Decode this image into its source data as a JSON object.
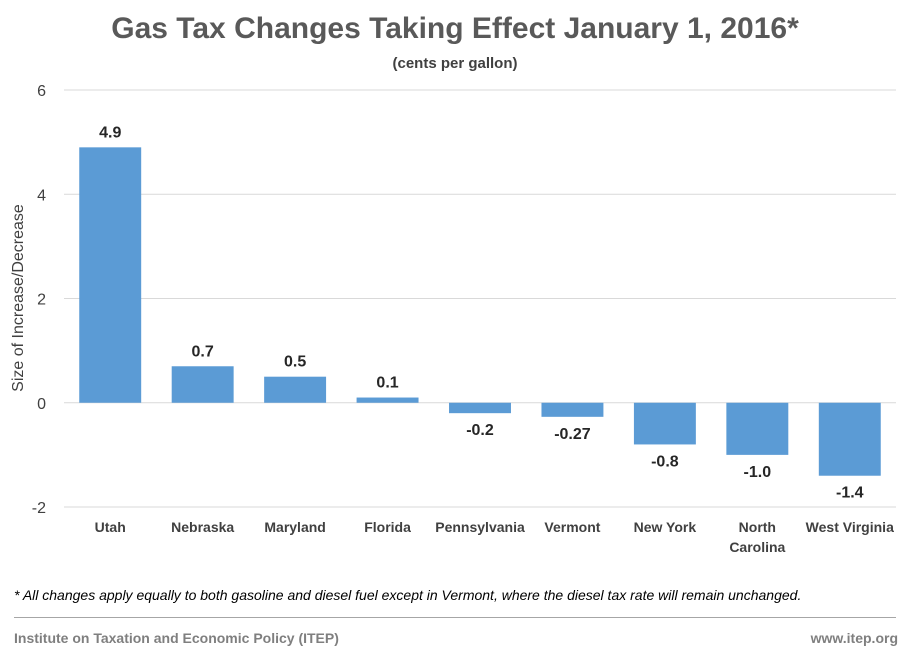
{
  "chart_data": {
    "type": "bar",
    "title": "Gas Tax Changes Taking Effect January 1, 2016*",
    "subtitle": "(cents per gallon)",
    "xlabel": "",
    "ylabel": "Size of Increase/Decrease",
    "ylim": [
      -2,
      6
    ],
    "yticks": [
      -2,
      0,
      2,
      4,
      6
    ],
    "categories": [
      "Utah",
      "Nebraska",
      "Maryland",
      "Florida",
      "Pennsylvania",
      "Vermont",
      "New York",
      "North Carolina",
      "West Virginia"
    ],
    "category_lines": [
      [
        "Utah"
      ],
      [
        "Nebraska"
      ],
      [
        "Maryland"
      ],
      [
        "Florida"
      ],
      [
        "Pennsylvania"
      ],
      [
        "Vermont"
      ],
      [
        "New York"
      ],
      [
        "North",
        "Carolina"
      ],
      [
        "West Virginia"
      ]
    ],
    "values": [
      4.9,
      0.7,
      0.5,
      0.1,
      -0.2,
      -0.27,
      -0.8,
      -1.0,
      -1.4
    ],
    "data_labels": [
      "4.9",
      "0.7",
      "0.5",
      "0.1",
      "-0.2",
      "-0.27",
      "-0.8",
      "-1.0",
      "-1.4"
    ],
    "bar_color": "#5b9bd5",
    "grid": true,
    "legend": "none"
  },
  "footnote": "* All changes apply equally to both gasoline and diesel fuel except in Vermont, where the diesel tax rate will remain unchanged.",
  "source": "Institute on Taxation and Economic Policy (ITEP)",
  "website": "www.itep.org"
}
